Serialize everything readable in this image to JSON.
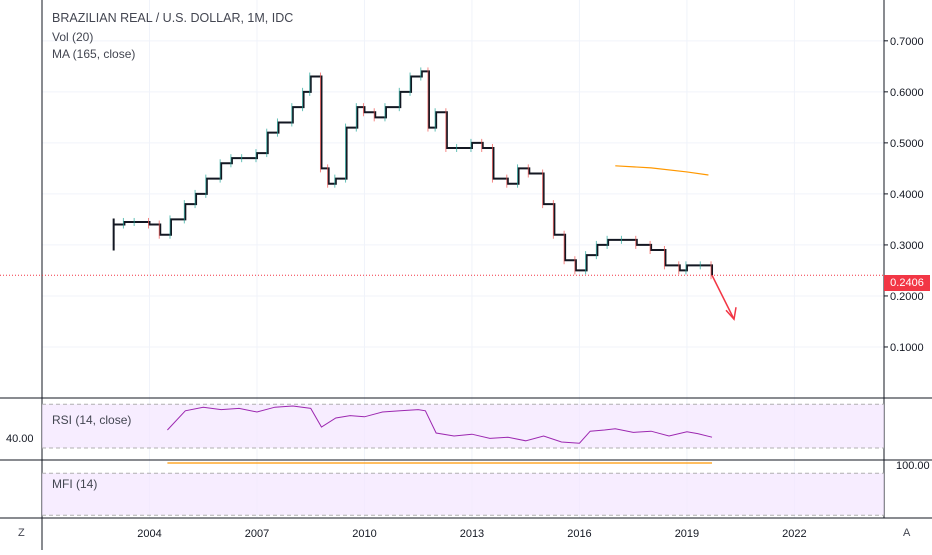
{
  "legend": {
    "title": "BRAZILIAN REAL / U.S. DOLLAR, 1M, IDC",
    "vol": "Vol (20)",
    "ma": "MA (165, close)"
  },
  "rsi_label": "RSI (14, close)",
  "mfi_label": "MFI (14)",
  "rsi_axis_label": "40.00",
  "mfi_axis_label": "100.00",
  "corner_left": "Z",
  "corner_right": "A",
  "last_price_label": "0.2406",
  "colors": {
    "candle": "#131722",
    "wick_red": "#ef5350",
    "wick_green": "#26a69a",
    "ma": "#ff9800",
    "price_line": "#f23645",
    "rsi": "#9c27b0",
    "pane_fill": "#f3e5ff",
    "mfi_line": "#ff9800",
    "arrow": "#f23645"
  },
  "chart_data": [
    {
      "type": "line",
      "title": "BRAZILIAN REAL / U.S. DOLLAR, 1M, IDC",
      "x_ticks": [
        "2004",
        "2007",
        "2010",
        "2013",
        "2016",
        "2019",
        "2022"
      ],
      "y_ticks": [
        "0.1000",
        "0.2000",
        "0.3000",
        "0.4000",
        "0.5000",
        "0.6000",
        "0.7000"
      ],
      "ylim": [
        0.0,
        0.78
      ],
      "xlim": [
        2001.0,
        2024.5
      ],
      "last_price": 0.2406,
      "series": [
        {
          "x": [
            2003.0,
            2003.3,
            2003.6,
            2004.0,
            2004.3,
            2004.6,
            2005.0,
            2005.3,
            2005.6,
            2006.0,
            2006.3,
            2006.6,
            2007.0,
            2007.3,
            2007.6,
            2008.0,
            2008.3,
            2008.5,
            2008.8,
            2009.0,
            2009.2,
            2009.5,
            2009.8,
            2010.0,
            2010.3,
            2010.6,
            2011.0,
            2011.3,
            2011.6,
            2011.8,
            2012.0,
            2012.3,
            2012.6,
            2013.0,
            2013.3,
            2013.6,
            2014.0,
            2014.3,
            2014.6,
            2015.0,
            2015.3,
            2015.6,
            2015.9,
            2016.2,
            2016.5,
            2016.8,
            2017.2,
            2017.6,
            2018.0,
            2018.4,
            2018.8,
            2019.0,
            2019.4,
            2019.7
          ],
          "values": [
            0.34,
            0.345,
            0.345,
            0.34,
            0.32,
            0.35,
            0.38,
            0.4,
            0.43,
            0.46,
            0.47,
            0.47,
            0.48,
            0.52,
            0.54,
            0.57,
            0.6,
            0.63,
            0.45,
            0.42,
            0.43,
            0.53,
            0.57,
            0.56,
            0.55,
            0.57,
            0.6,
            0.63,
            0.64,
            0.53,
            0.56,
            0.49,
            0.49,
            0.5,
            0.49,
            0.43,
            0.42,
            0.45,
            0.44,
            0.38,
            0.32,
            0.27,
            0.25,
            0.28,
            0.3,
            0.31,
            0.31,
            0.3,
            0.29,
            0.26,
            0.25,
            0.26,
            0.26,
            0.2406
          ]
        },
        {
          "x": [
            2017.0,
            2018.0,
            2019.0,
            2019.6
          ],
          "values": [
            0.455,
            0.451,
            0.443,
            0.437
          ]
        }
      ],
      "annotation": "arrow-down"
    },
    {
      "type": "line",
      "title": "RSI (14, close)",
      "ylim": [
        0,
        100
      ],
      "series": [
        {
          "x": [
            2004.5,
            2005.0,
            2005.5,
            2006.0,
            2006.5,
            2007.0,
            2007.5,
            2008.0,
            2008.5,
            2008.8,
            2009.2,
            2009.6,
            2010.0,
            2010.5,
            2011.0,
            2011.5,
            2011.7,
            2012.0,
            2012.5,
            2013.0,
            2013.5,
            2014.0,
            2014.5,
            2015.0,
            2015.5,
            2016.0,
            2016.3,
            2016.7,
            2017.0,
            2017.5,
            2018.0,
            2018.5,
            2019.0,
            2019.3,
            2019.7
          ],
          "values": [
            50,
            82,
            88,
            84,
            86,
            80,
            88,
            90,
            86,
            55,
            70,
            74,
            72,
            80,
            82,
            84,
            82,
            45,
            40,
            43,
            36,
            38,
            32,
            40,
            30,
            28,
            48,
            50,
            52,
            46,
            48,
            40,
            47,
            44,
            38
          ]
        }
      ]
    },
    {
      "type": "line",
      "title": "MFI (14)",
      "ylim": [
        0,
        100
      ],
      "series": [
        {
          "x": [
            2004.5,
            2019.7
          ],
          "values": [
            100,
            100
          ]
        }
      ]
    }
  ]
}
